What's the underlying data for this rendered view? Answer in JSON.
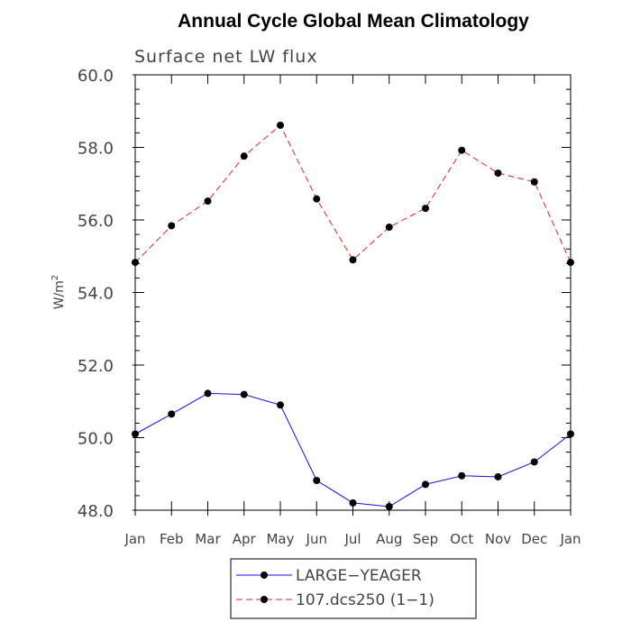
{
  "chart_data": {
    "type": "line",
    "title": "Annual Cycle Global Mean Climatology",
    "subtitle": "Surface net LW flux",
    "ylabel": "W/m",
    "ylabel_sup": "2",
    "ylim": [
      48.0,
      60.0
    ],
    "yticks": [
      "48.0",
      "50.0",
      "52.0",
      "54.0",
      "56.0",
      "58.0",
      "60.0"
    ],
    "categories": [
      "Jan",
      "Feb",
      "Mar",
      "Apr",
      "May",
      "Jun",
      "Jul",
      "Aug",
      "Sep",
      "Oct",
      "Nov",
      "Dec",
      "Jan"
    ],
    "series": [
      {
        "name": "LARGE−YEAGER",
        "color": "#1010e0",
        "dash": "solid",
        "values": [
          50.1,
          50.65,
          51.22,
          51.19,
          50.9,
          48.82,
          48.2,
          48.1,
          48.71,
          48.95,
          48.92,
          49.33,
          50.1
        ]
      },
      {
        "name": "107.dcs250 (1−1)",
        "color": "#e02020",
        "dash": "dashed",
        "values": [
          54.83,
          55.84,
          56.52,
          57.76,
          58.61,
          56.58,
          54.9,
          55.8,
          56.32,
          57.92,
          57.29,
          57.05,
          54.83
        ]
      }
    ]
  }
}
